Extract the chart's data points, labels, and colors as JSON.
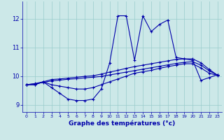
{
  "xlabel": "Graphe des températures (°c)",
  "x": [
    0,
    1,
    2,
    3,
    4,
    5,
    6,
    7,
    8,
    9,
    10,
    11,
    12,
    13,
    14,
    15,
    16,
    17,
    18,
    19,
    20,
    21,
    22,
    23
  ],
  "line1": [
    9.7,
    9.7,
    9.8,
    9.6,
    9.4,
    9.2,
    9.15,
    9.15,
    9.2,
    9.55,
    10.45,
    12.1,
    12.1,
    10.55,
    12.1,
    11.55,
    11.8,
    11.95,
    10.65,
    10.6,
    10.55,
    9.85,
    9.95,
    10.05
  ],
  "line2": [
    9.7,
    9.7,
    9.8,
    9.7,
    9.65,
    9.6,
    9.55,
    9.55,
    9.6,
    9.7,
    9.8,
    9.9,
    10.0,
    10.1,
    10.15,
    10.2,
    10.27,
    10.33,
    10.38,
    10.43,
    10.43,
    10.28,
    10.1,
    10.02
  ],
  "line3": [
    9.7,
    9.73,
    9.78,
    9.83,
    9.86,
    9.89,
    9.91,
    9.94,
    9.96,
    9.99,
    10.04,
    10.09,
    10.14,
    10.19,
    10.24,
    10.29,
    10.34,
    10.39,
    10.44,
    10.48,
    10.5,
    10.38,
    10.18,
    10.03
  ],
  "line4": [
    9.7,
    9.74,
    9.8,
    9.88,
    9.9,
    9.93,
    9.96,
    9.99,
    10.01,
    10.07,
    10.14,
    10.2,
    10.27,
    10.33,
    10.38,
    10.43,
    10.48,
    10.53,
    10.58,
    10.6,
    10.6,
    10.46,
    10.23,
    10.03
  ],
  "line_color": "#0000aa",
  "bg_color": "#cce8e8",
  "grid_color": "#99cccc",
  "ylim": [
    8.75,
    12.6
  ],
  "yticks": [
    9,
    10,
    11,
    12
  ],
  "xlim": [
    -0.5,
    23.5
  ]
}
